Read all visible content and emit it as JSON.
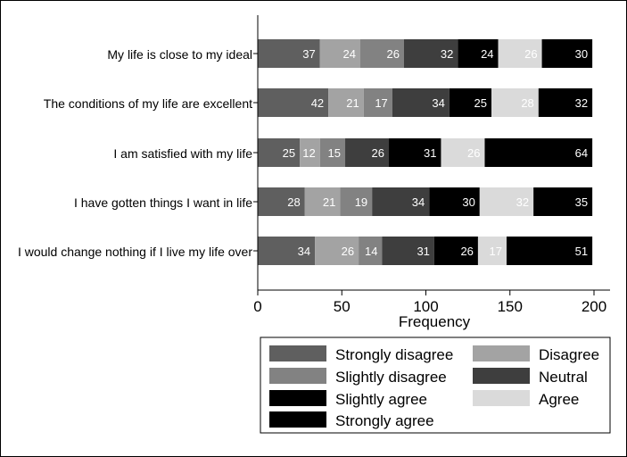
{
  "chart_data": {
    "type": "bar",
    "orientation": "horizontal",
    "stacked": true,
    "categories": [
      "My life is close to my ideal",
      "The conditions of my life are excellent",
      "I am satisfied with my life",
      "I have gotten things I want in life",
      "I would change nothing if I live my life over"
    ],
    "series": [
      {
        "name": "Strongly disagree",
        "color": "#5f5f5f",
        "values": [
          37,
          42,
          25,
          28,
          34
        ]
      },
      {
        "name": "Disagree",
        "color": "#a3a3a3",
        "values": [
          24,
          21,
          12,
          21,
          26
        ]
      },
      {
        "name": "Slightly disagree",
        "color": "#828282",
        "values": [
          26,
          17,
          15,
          19,
          14
        ]
      },
      {
        "name": "Neutral",
        "color": "#3e3e3e",
        "values": [
          32,
          34,
          26,
          34,
          31
        ]
      },
      {
        "name": "Slightly agree",
        "color": "#000000",
        "values": [
          24,
          25,
          31,
          30,
          26
        ]
      },
      {
        "name": "Agree",
        "color": "#dadada",
        "values": [
          26,
          28,
          26,
          32,
          17
        ]
      },
      {
        "name": "Strongly agree",
        "color": "#000000",
        "values": [
          30,
          32,
          64,
          35,
          51
        ]
      }
    ],
    "xlabel": "Frequency",
    "xlim": [
      0,
      200
    ],
    "xticks": [
      0,
      50,
      100,
      150,
      200
    ],
    "grid": false,
    "legend_position": "bottom-right"
  }
}
